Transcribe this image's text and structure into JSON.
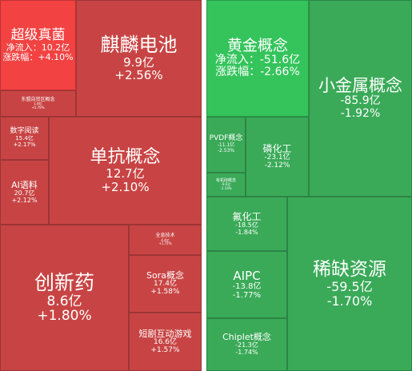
{
  "tiles": [
    {
      "name": "超级真菌",
      "flow": "净流入：10.2亿",
      "change": "涨跌幅：+4.10%"
    },
    {
      "name": "麒麟电池",
      "flow": "9.9亿",
      "change": "+2.56%"
    },
    {
      "name": "东盟自贸区概念",
      "flow": "1.8亿",
      "change": "+5.79%"
    },
    {
      "name": "数字阅读",
      "flow": "15.4亿",
      "change": "+2.17%"
    },
    {
      "name": "AI语料",
      "flow": "20.7亿",
      "change": "+2.12%"
    },
    {
      "name": "单抗概念",
      "flow": "12.7亿",
      "change": "+2.10%"
    },
    {
      "name": "创新药",
      "flow": "8.6亿",
      "change": "+1.80%"
    },
    {
      "name": "全息技术",
      "flow": "4.4亿",
      "change": "+1.72%"
    },
    {
      "name": "Sora概念",
      "flow": "17.4亿",
      "change": "+1.58%"
    },
    {
      "name": "短剧互动游戏",
      "flow": "16.6亿",
      "change": "+1.57%"
    },
    {
      "name": "黄金概念",
      "flow": "净流入：-51.6亿",
      "change": "涨跌幅：-2.66%"
    },
    {
      "name": "小金属概念",
      "flow": "-85.9亿",
      "change": "-1.92%"
    },
    {
      "name": "PVDF概念",
      "flow": "-11.1亿",
      "change": "-2.53%"
    },
    {
      "name": "磷化工",
      "flow": "-23.1亿",
      "change": "-2.12%"
    },
    {
      "name": "有机硅概念",
      "flow": "-9.6亿",
      "change": "-2.18%"
    },
    {
      "name": "氟化工",
      "flow": "-18.5亿",
      "change": "-1.84%"
    },
    {
      "name": "AIPC",
      "flow": "-13.8亿",
      "change": "-1.77%"
    },
    {
      "name": "Chiplet概念",
      "flow": "-21.3亿",
      "change": "-1.74%"
    },
    {
      "name": "稀缺资源",
      "flow": "-59.5亿",
      "change": "-1.70%"
    }
  ]
}
